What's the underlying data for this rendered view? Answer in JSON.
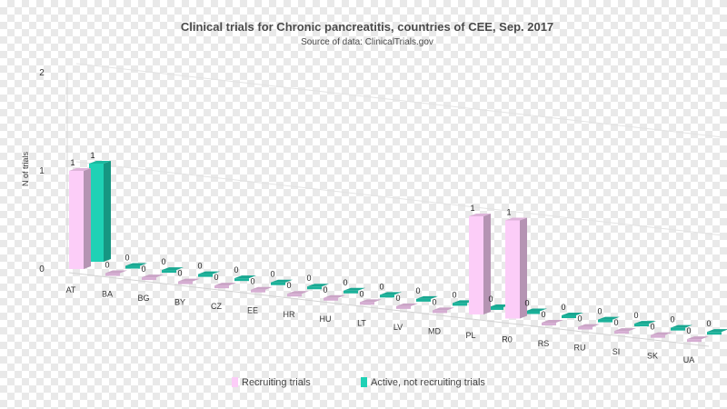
{
  "chart_data": {
    "type": "bar",
    "title": "Clinical trials for Chronic pancreatitis, countries of CEE, Sep. 2017",
    "subtitle": "Source of data: ClinicalTrials.gov",
    "ylabel": "N of trials",
    "ylim": [
      0,
      2
    ],
    "yticks": [
      "0",
      "1",
      "2"
    ],
    "categories": [
      "AT",
      "BA",
      "BG",
      "BY",
      "CZ",
      "EE",
      "HR",
      "HU",
      "LT",
      "LV",
      "MD",
      "PL",
      "R0",
      "RS",
      "RU",
      "SI",
      "SK",
      "UA"
    ],
    "series": [
      {
        "name": "Recruiting trials",
        "color": "#fccdf8",
        "values": [
          1,
          0,
          0,
          0,
          0,
          0,
          0,
          0,
          0,
          0,
          0,
          1,
          1,
          0,
          0,
          0,
          0,
          0
        ]
      },
      {
        "name": "Active, not recruiting trials",
        "color": "#1fd1b5",
        "values": [
          1,
          0,
          0,
          0,
          0,
          0,
          0,
          0,
          0,
          0,
          0,
          0,
          0,
          0,
          0,
          0,
          0,
          0
        ]
      }
    ],
    "data_labels": {
      "recruiting": [
        "1",
        "0",
        "0",
        "0",
        "0",
        "0",
        "0",
        "0",
        "0",
        "0",
        "0",
        "1",
        "1",
        "0",
        "0",
        "0",
        "0",
        "0"
      ],
      "active": [
        "1",
        "0",
        "0",
        "0",
        "0",
        "0",
        "0",
        "0",
        "0",
        "0",
        "0",
        "0",
        "0",
        "0",
        "0",
        "0",
        "0",
        "0"
      ]
    },
    "highlight_label_color": "#e02020",
    "legend_position": "bottom"
  }
}
